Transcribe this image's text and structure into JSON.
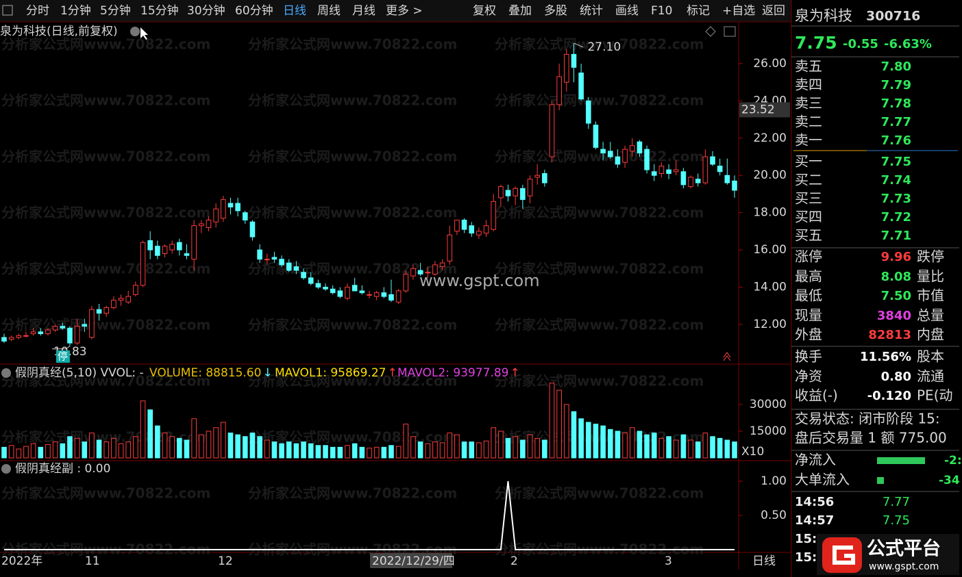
{
  "toolbar": {
    "left": [
      "分时",
      "1分钟",
      "5分钟",
      "15分钟",
      "30分钟",
      "60分钟",
      "日线",
      "周线",
      "月线",
      "更多 >"
    ],
    "right": [
      "复权",
      "叠加",
      "多股",
      "统计",
      "画线",
      "F10",
      "标记",
      "+自选",
      "返回"
    ]
  },
  "watermark": "分析家公式网www.70822.com",
  "watermark2": "www.gspt.com",
  "chart_data": [
    {
      "type": "candlestick",
      "title": "泉为科技(日线,前复权)",
      "up_color": "#ff3c3c",
      "down_color": "#54ffff",
      "candles": [
        [
          11.3,
          11.5,
          11.0,
          11.1
        ],
        [
          11.2,
          11.4,
          11.1,
          11.3
        ],
        [
          11.3,
          11.5,
          11.2,
          11.4
        ],
        [
          11.4,
          11.6,
          11.3,
          11.4
        ],
        [
          11.5,
          11.8,
          11.4,
          11.6
        ],
        [
          11.6,
          11.8,
          11.4,
          11.5
        ],
        [
          11.5,
          11.8,
          11.4,
          11.7
        ],
        [
          11.7,
          12.0,
          11.6,
          11.9
        ],
        [
          11.9,
          12.1,
          11.7,
          11.8
        ],
        [
          11.8,
          11.9,
          10.83,
          11.0
        ],
        [
          11.0,
          12.3,
          10.9,
          11.9
        ],
        [
          12.0,
          12.3,
          11.6,
          11.9
        ],
        [
          11.3,
          13.0,
          11.2,
          12.8
        ],
        [
          12.8,
          13.1,
          12.2,
          12.6
        ],
        [
          12.6,
          13.0,
          12.4,
          12.9
        ],
        [
          12.9,
          13.5,
          12.8,
          13.3
        ],
        [
          13.3,
          13.6,
          13.0,
          13.4
        ],
        [
          13.2,
          13.8,
          13.1,
          13.5
        ],
        [
          13.6,
          14.3,
          13.5,
          14.1
        ],
        [
          14.1,
          16.5,
          14.0,
          16.4
        ],
        [
          16.5,
          17.0,
          15.5,
          16.0
        ],
        [
          16.2,
          16.5,
          15.5,
          15.7
        ],
        [
          15.8,
          16.3,
          15.6,
          16.2
        ],
        [
          16.0,
          16.5,
          15.8,
          16.3
        ],
        [
          16.4,
          16.6,
          15.7,
          16.0
        ],
        [
          15.8,
          16.3,
          15.5,
          15.7
        ],
        [
          15.5,
          17.6,
          14.9,
          17.3
        ],
        [
          17.3,
          17.6,
          16.9,
          17.4
        ],
        [
          17.2,
          17.8,
          17.0,
          17.6
        ],
        [
          17.5,
          18.5,
          17.2,
          18.2
        ],
        [
          17.7,
          18.9,
          17.5,
          18.7
        ],
        [
          18.5,
          18.8,
          17.9,
          18.3
        ],
        [
          18.5,
          18.8,
          17.8,
          18.1
        ],
        [
          18.0,
          18.1,
          17.4,
          17.6
        ],
        [
          17.5,
          17.6,
          16.5,
          16.7
        ],
        [
          16.0,
          16.3,
          15.3,
          15.5
        ],
        [
          15.5,
          15.8,
          15.2,
          15.5
        ],
        [
          15.6,
          15.9,
          15.3,
          15.5
        ],
        [
          15.5,
          15.7,
          15.1,
          15.2
        ],
        [
          15.3,
          15.5,
          14.8,
          14.9
        ],
        [
          15.1,
          15.4,
          14.7,
          14.9
        ],
        [
          14.8,
          15.0,
          14.4,
          14.5
        ],
        [
          14.5,
          14.8,
          14.1,
          14.2
        ],
        [
          14.2,
          14.4,
          13.9,
          14.0
        ],
        [
          14.0,
          14.2,
          13.8,
          13.9
        ],
        [
          13.9,
          14.1,
          13.6,
          13.7
        ],
        [
          13.8,
          14.0,
          13.4,
          13.5
        ],
        [
          13.4,
          14.2,
          13.3,
          14.0
        ],
        [
          14.1,
          14.5,
          13.8,
          13.8
        ],
        [
          13.8,
          14.1,
          13.6,
          13.7
        ],
        [
          13.6,
          13.8,
          13.4,
          13.6
        ],
        [
          13.5,
          13.8,
          13.3,
          13.7
        ],
        [
          13.7,
          14.0,
          13.4,
          13.5
        ],
        [
          13.6,
          14.4,
          13.2,
          13.3
        ],
        [
          13.2,
          13.9,
          13.1,
          13.8
        ],
        [
          13.8,
          14.9,
          13.7,
          14.7
        ],
        [
          14.6,
          15.2,
          14.4,
          15.0
        ],
        [
          14.9,
          15.3,
          14.6,
          14.7
        ],
        [
          14.8,
          15.1,
          14.5,
          14.8
        ],
        [
          14.7,
          15.4,
          14.6,
          15.2
        ],
        [
          15.1,
          15.5,
          14.9,
          15.3
        ],
        [
          15.4,
          17.3,
          15.2,
          16.8
        ],
        [
          17.0,
          17.6,
          16.8,
          17.6
        ],
        [
          17.6,
          17.7,
          16.9,
          17.1
        ],
        [
          17.3,
          17.5,
          16.7,
          16.9
        ],
        [
          16.8,
          17.2,
          16.6,
          17.0
        ],
        [
          16.9,
          17.6,
          16.7,
          17.3
        ],
        [
          17.1,
          19.0,
          17.0,
          18.6
        ],
        [
          18.8,
          19.5,
          18.3,
          19.4
        ],
        [
          19.2,
          19.5,
          18.6,
          18.9
        ],
        [
          18.9,
          19.4,
          18.4,
          19.3
        ],
        [
          19.3,
          19.5,
          18.2,
          18.7
        ],
        [
          18.9,
          20.0,
          18.5,
          19.8
        ],
        [
          19.9,
          20.6,
          19.5,
          20.0
        ],
        [
          20.1,
          20.3,
          19.4,
          19.6
        ],
        [
          21.0,
          24.0,
          20.7,
          23.8
        ],
        [
          23.8,
          26.0,
          23.5,
          25.3
        ],
        [
          25.0,
          26.8,
          24.5,
          26.5
        ],
        [
          26.5,
          27.1,
          25.0,
          25.8
        ],
        [
          25.5,
          26.0,
          24.0,
          24.1
        ],
        [
          24.0,
          24.2,
          22.5,
          22.8
        ],
        [
          22.7,
          22.9,
          21.4,
          21.5
        ],
        [
          21.4,
          21.8,
          20.8,
          21.2
        ],
        [
          21.3,
          21.8,
          20.9,
          21.0
        ],
        [
          21.0,
          21.4,
          20.4,
          20.6
        ],
        [
          20.7,
          21.6,
          20.4,
          21.4
        ],
        [
          21.3,
          22.0,
          21.0,
          21.6
        ],
        [
          21.8,
          21.9,
          21.0,
          21.2
        ],
        [
          21.4,
          21.6,
          20.1,
          20.3
        ],
        [
          20.2,
          20.6,
          19.7,
          20.0
        ],
        [
          20.1,
          20.7,
          19.9,
          20.5
        ],
        [
          20.3,
          20.6,
          19.8,
          20.1
        ],
        [
          20.2,
          20.8,
          20.0,
          20.3
        ],
        [
          20.2,
          20.4,
          19.3,
          19.5
        ],
        [
          19.4,
          20.0,
          19.3,
          19.9
        ],
        [
          19.8,
          20.1,
          19.4,
          19.6
        ],
        [
          19.6,
          21.4,
          19.5,
          21.0
        ],
        [
          21.0,
          21.3,
          20.5,
          20.6
        ],
        [
          20.5,
          20.9,
          20.0,
          20.2
        ],
        [
          20.0,
          20.9,
          19.5,
          19.6
        ],
        [
          19.7,
          20.0,
          18.8,
          19.2
        ]
      ],
      "ylim": [
        9.94,
        28.24
      ],
      "yticks": [
        {
          "value": 12,
          "label": "12.00"
        },
        {
          "value": 14,
          "label": "14.00"
        },
        {
          "value": 16,
          "label": "16.00"
        },
        {
          "value": 18,
          "label": "18.00"
        },
        {
          "value": 20,
          "label": "20.00"
        },
        {
          "value": 22,
          "label": "22.00"
        },
        {
          "value": 24,
          "label": "24.00"
        },
        {
          "value": 26,
          "label": "26.00"
        }
      ],
      "cursor_price": {
        "value": 23.52,
        "label": "23.52"
      },
      "high_label": "27.10",
      "low_label": "10.83",
      "badge": "停"
    },
    {
      "type": "bar",
      "title": "假阴真经(5,10) VVOL: -",
      "legend": [
        {
          "name": "VOLUME: 88815.60",
          "color": "#e8c000",
          "arrow": "↓",
          "arrow_color": "#54ffff"
        },
        {
          "name": "MAVOL1: 95869.27",
          "color": "#ffe000",
          "arrow": "↑",
          "arrow_color": "#ff3c3c"
        },
        {
          "name": "MAVOL2: 93977.89",
          "color": "#e040e0",
          "arrow": "↑",
          "arrow_color": "#ff3c3c"
        }
      ],
      "values": [
        6000,
        7000,
        5000,
        6500,
        8000,
        6000,
        7500,
        9000,
        8000,
        12000,
        11000,
        9000,
        14000,
        10000,
        9000,
        11000,
        8000,
        9000,
        12000,
        32000,
        27000,
        18000,
        14000,
        12000,
        11000,
        10000,
        22000,
        13000,
        15000,
        17000,
        20000,
        14000,
        13000,
        12000,
        14000,
        12000,
        10000,
        9000,
        8000,
        9000,
        8000,
        9000,
        8000,
        7000,
        7000,
        6000,
        6000,
        7000,
        8000,
        6000,
        5500,
        6000,
        6000,
        7000,
        6500,
        19000,
        12000,
        9000,
        8000,
        9000,
        8500,
        14000,
        13000,
        9000,
        9000,
        8500,
        9500,
        17000,
        15000,
        11000,
        12000,
        10000,
        13000,
        11000,
        10000,
        42000,
        38000,
        30000,
        26000,
        22000,
        20000,
        19000,
        18000,
        16000,
        15000,
        14000,
        17000,
        15000,
        13000,
        14000,
        11000,
        12000,
        10000,
        13000,
        10000,
        9000,
        14000,
        12000,
        11000,
        10000,
        9000
      ],
      "ylim": [
        0,
        51500
      ],
      "yticks": [
        15000,
        30000
      ],
      "unit": "X10"
    },
    {
      "type": "line",
      "title": "假阴真经副 : 0.00",
      "color": "#ffffff",
      "values": [
        0,
        0,
        0,
        0,
        0,
        0,
        0,
        0,
        0,
        0,
        0,
        0,
        0,
        0,
        0,
        0,
        0,
        0,
        0,
        0,
        0,
        0,
        0,
        0,
        0,
        0,
        0,
        0,
        0,
        0,
        0,
        0,
        0,
        0,
        0,
        0,
        0,
        0,
        0,
        0,
        0,
        0,
        0,
        0,
        0,
        0,
        0,
        0,
        0,
        0,
        0,
        0,
        0,
        0,
        0,
        0,
        0,
        0,
        0,
        0,
        0,
        0,
        0,
        0,
        0,
        0,
        0,
        0,
        0,
        1,
        0,
        0,
        0,
        0,
        0,
        0,
        0,
        0,
        0,
        0,
        0,
        0,
        0,
        0,
        0,
        0,
        0,
        0,
        0,
        0,
        0,
        0,
        0,
        0,
        0,
        0,
        0,
        0,
        0,
        0,
        0
      ],
      "ylim": [
        0,
        1.27
      ],
      "yticks": [
        {
          "value": 1,
          "label": "1.00"
        },
        {
          "value": 0.5,
          "label": "0.50"
        }
      ]
    }
  ],
  "x_labels": [
    "2022年",
    "11",
    "12",
    "2",
    "3"
  ],
  "cursor_date": "2022/12/29/四",
  "period": "日线",
  "panel": {
    "name": "泉为科技",
    "code": "300716",
    "price": "7.75",
    "change": "-0.55",
    "pct": "-6.63%",
    "asks": [
      {
        "label": "卖五",
        "price": "7.80"
      },
      {
        "label": "卖四",
        "price": "7.79"
      },
      {
        "label": "卖三",
        "price": "7.78"
      },
      {
        "label": "卖二",
        "price": "7.77"
      },
      {
        "label": "卖一",
        "price": "7.76"
      }
    ],
    "bids": [
      {
        "label": "买一",
        "price": "7.75"
      },
      {
        "label": "买二",
        "price": "7.74"
      },
      {
        "label": "买三",
        "price": "7.73"
      },
      {
        "label": "买四",
        "price": "7.72"
      },
      {
        "label": "买五",
        "price": "7.71"
      }
    ],
    "stats": [
      [
        "涨停",
        "9.96",
        "跌停"
      ],
      [
        "最高",
        "8.08",
        "量比"
      ],
      [
        "最低",
        "7.50",
        "市值"
      ],
      [
        "现量",
        "3840",
        "总量"
      ],
      [
        "外盘",
        "82813",
        "内盘"
      ],
      [
        "换手",
        "11.56%",
        "股本"
      ],
      [
        "净资",
        "0.80",
        "流通"
      ],
      [
        "收益(-)",
        "-0.120",
        "PE(动"
      ]
    ],
    "status": "交易状态: 闭市阶段 15:",
    "after_hours": "盘后交易量 1 额 775.00",
    "flows": [
      [
        "净流入",
        "-2:"
      ],
      [
        "大单流入",
        "-34"
      ]
    ],
    "ticks": [
      [
        "14:56",
        "7.77"
      ],
      [
        "14:57",
        "7.75"
      ],
      [
        "15:0",
        ""
      ],
      [
        "15:1",
        ""
      ]
    ],
    "logo": "公式平台",
    "logo_url": "www.gspt.com"
  }
}
